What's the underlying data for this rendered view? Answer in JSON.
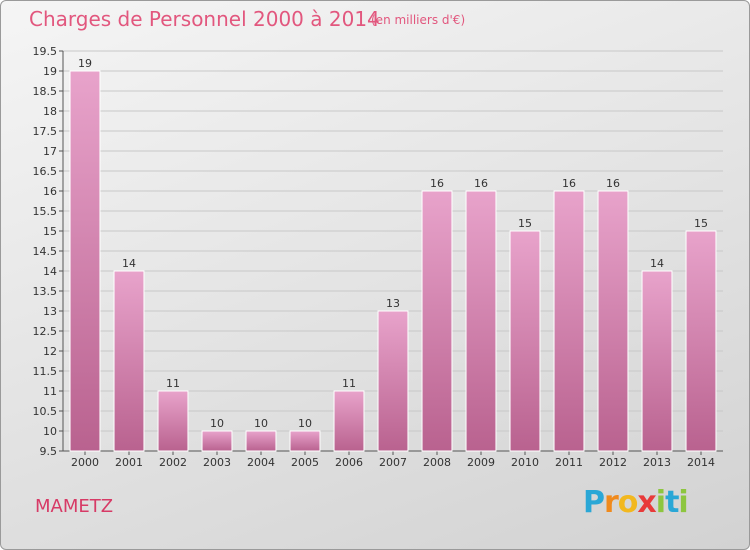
{
  "header": {
    "title": "Charges de Personnel 2000 à 2014",
    "subtitle": "(en milliers d'€)"
  },
  "footer": {
    "town": "MAMETZ",
    "logo_letters": [
      "P",
      "r",
      "o",
      "x",
      "i",
      "t",
      "i"
    ],
    "logo_colors": [
      "#2aa7d6",
      "#f08a1c",
      "#f2b81f",
      "#e83a3a",
      "#8dc63f",
      "#2aa7d6",
      "#8dc63f"
    ]
  },
  "colors": {
    "title": "#e2577e",
    "bar_top": "#e8a3cb",
    "bar_bottom": "#b9628f",
    "bar_stroke": "#ffffff",
    "grid": "#c8c8c8"
  },
  "chart_data": {
    "type": "bar",
    "title": "Charges de Personnel 2000 à 2014",
    "subtitle": "(en milliers d'€)",
    "categories": [
      "2000",
      "2001",
      "2002",
      "2003",
      "2004",
      "2005",
      "2006",
      "2007",
      "2008",
      "2009",
      "2010",
      "2011",
      "2012",
      "2013",
      "2014"
    ],
    "values": [
      19,
      14,
      11,
      10,
      10,
      10,
      11,
      13,
      16,
      16,
      15,
      16,
      16,
      14,
      15
    ],
    "ylim": [
      9.5,
      19.5
    ],
    "yticks": [
      9.5,
      10,
      10.5,
      11,
      11.5,
      12,
      12.5,
      13,
      13.5,
      14,
      14.5,
      15,
      15.5,
      16,
      16.5,
      17,
      17.5,
      18,
      18.5,
      19,
      19.5
    ],
    "ytick_labels": [
      "9.5",
      "10",
      "10.5",
      "11",
      "11.5",
      "12",
      "12.5",
      "13",
      "13.5",
      "14",
      "14.5",
      "15",
      "15.5",
      "16",
      "16.5",
      "17",
      "17.5",
      "18",
      "18.5",
      "19",
      "19.5"
    ],
    "grid": true
  }
}
